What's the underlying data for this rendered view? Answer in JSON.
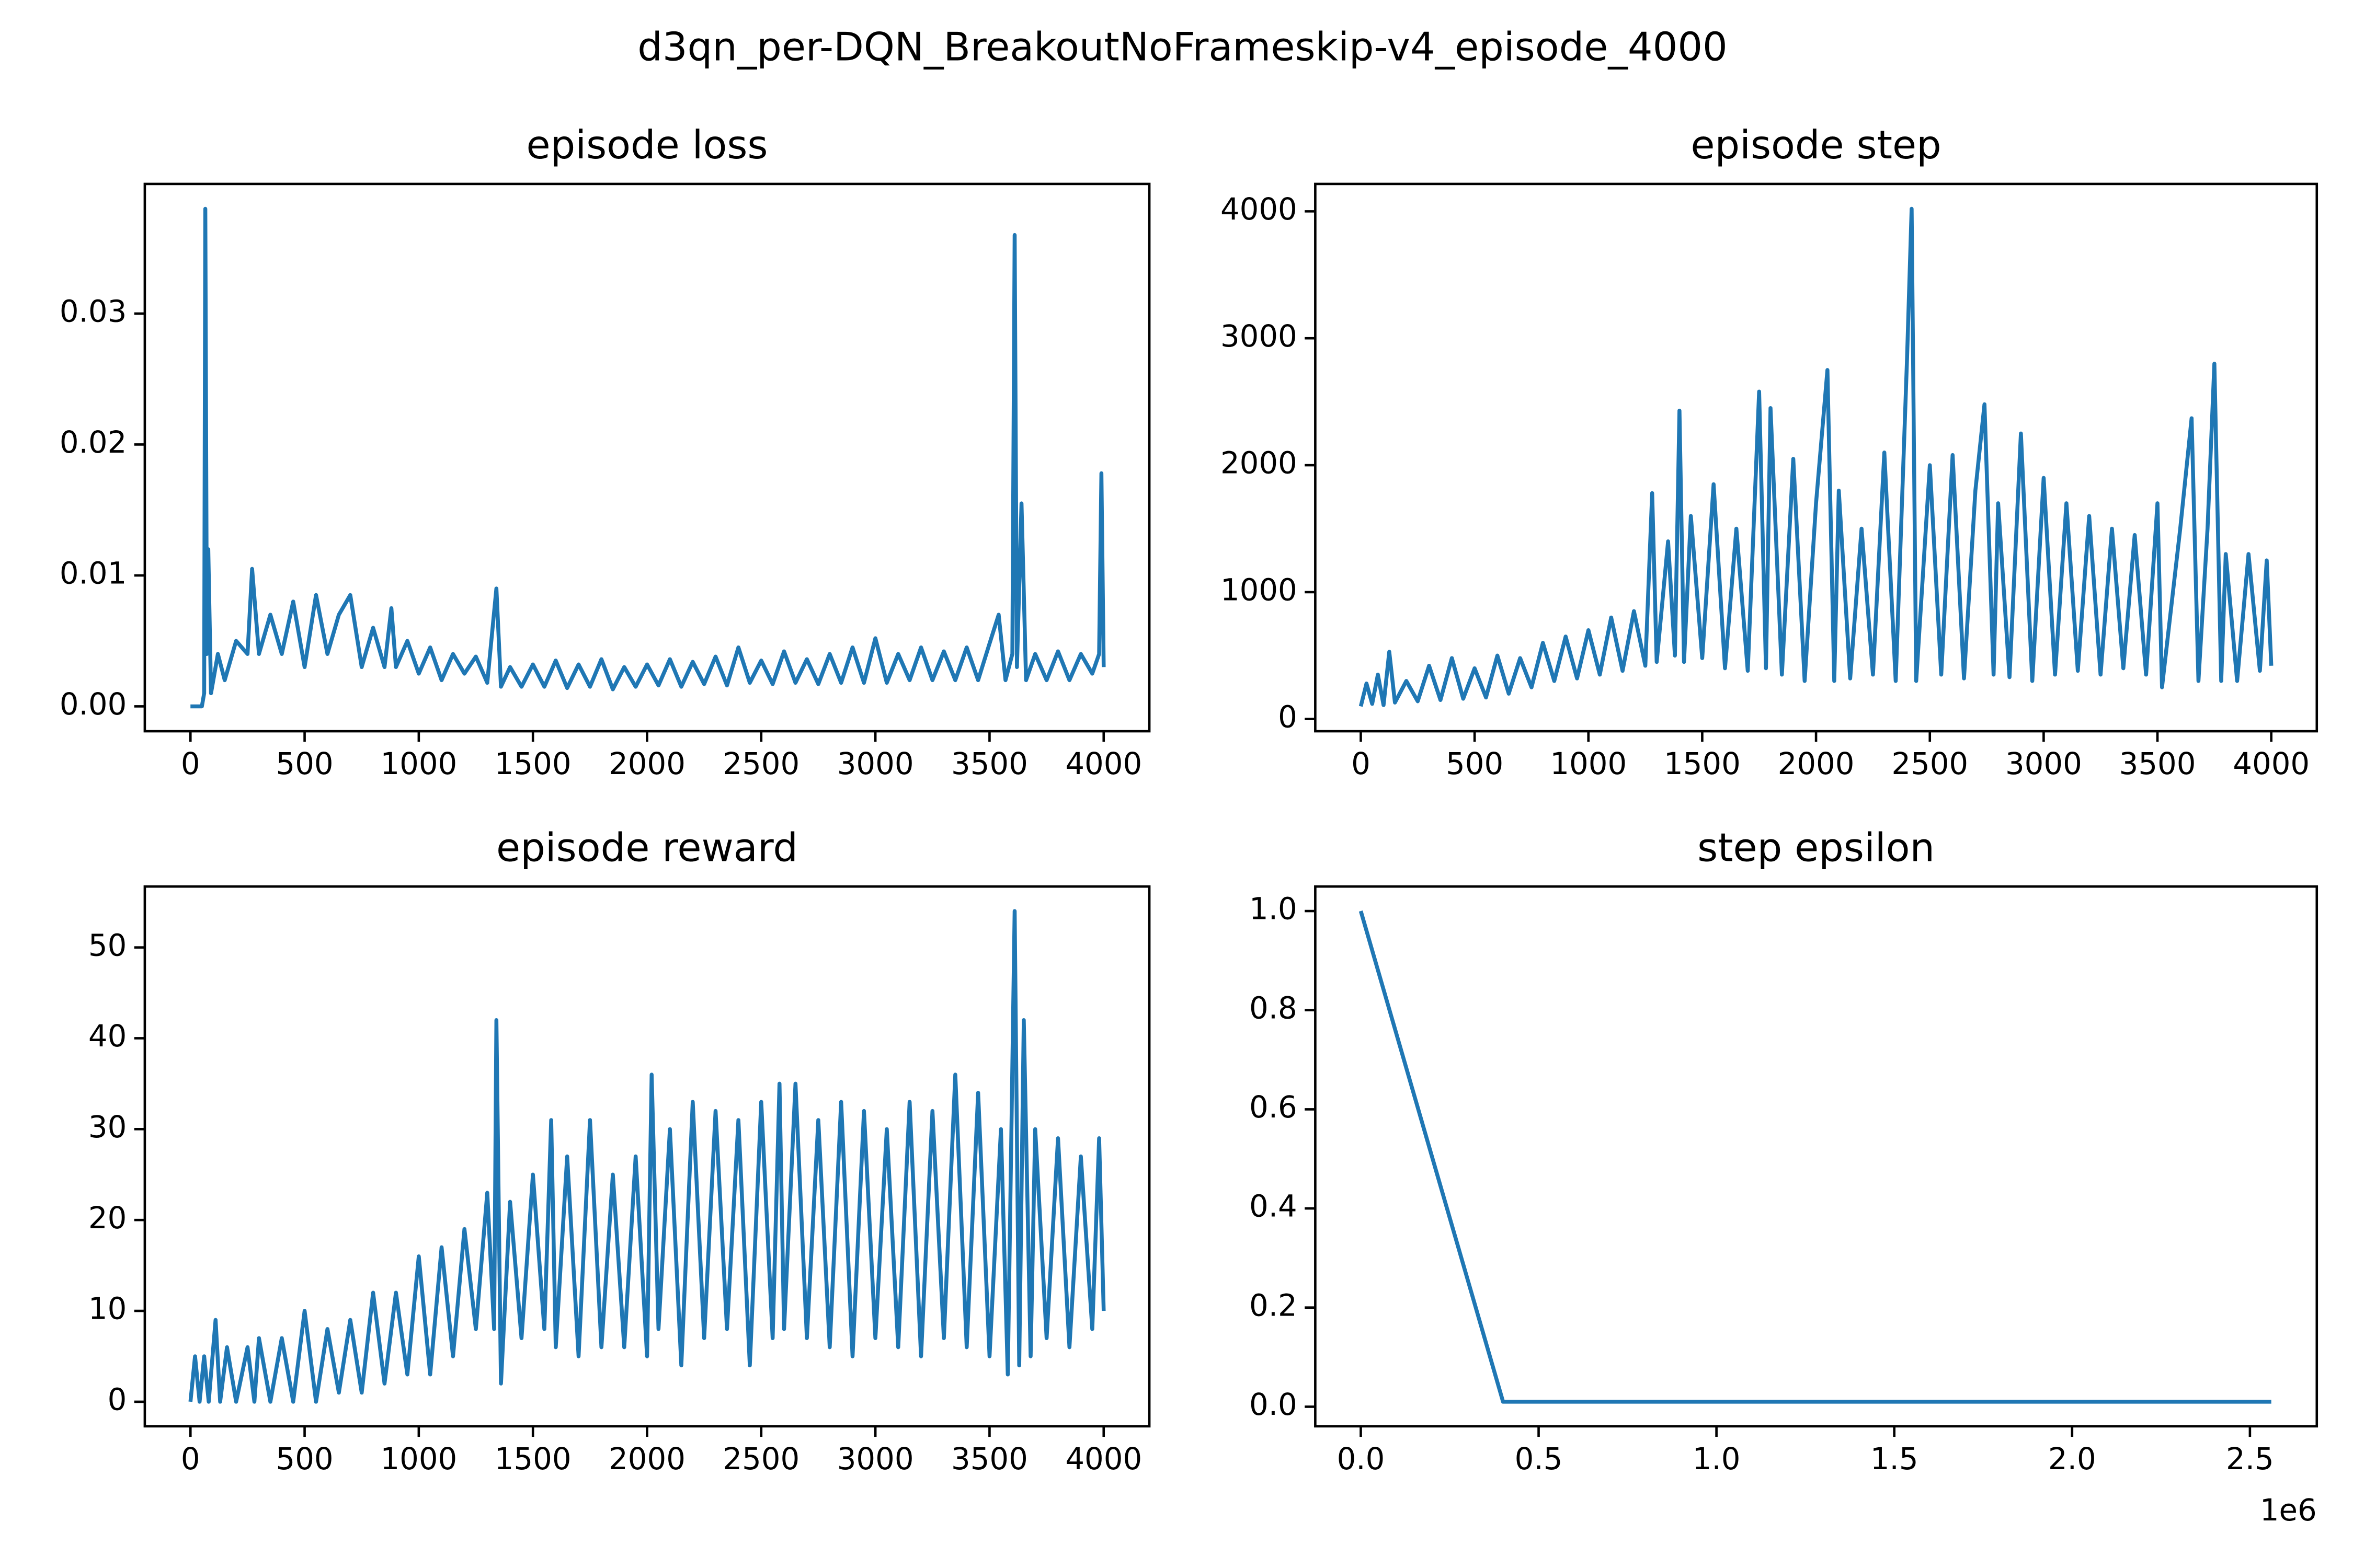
{
  "title": "d3qn_per-DQN_BreakoutNoFrameskip-v4_episode_4000",
  "chart_data": [
    {
      "type": "line",
      "title": "episode loss",
      "color": "#1f77b4",
      "xlim": [
        -200,
        4200
      ],
      "xticks": [
        0,
        500,
        1000,
        1500,
        2000,
        2500,
        3000,
        3500,
        4000
      ],
      "ylim": [
        -0.0019,
        0.0399
      ],
      "yticks": [
        {
          "value": 0,
          "label": "0.00"
        },
        0.01,
        0.02,
        0.03
      ],
      "x": [
        0,
        50,
        60,
        65,
        72,
        78,
        90,
        120,
        150,
        200,
        250,
        270,
        300,
        350,
        400,
        450,
        500,
        550,
        600,
        650,
        700,
        750,
        800,
        850,
        880,
        900,
        950,
        1000,
        1050,
        1100,
        1150,
        1200,
        1250,
        1300,
        1340,
        1360,
        1400,
        1450,
        1500,
        1550,
        1600,
        1650,
        1700,
        1750,
        1800,
        1850,
        1900,
        1950,
        2000,
        2050,
        2100,
        2150,
        2200,
        2250,
        2300,
        2350,
        2400,
        2450,
        2500,
        2550,
        2600,
        2650,
        2700,
        2750,
        2800,
        2850,
        2900,
        2950,
        3000,
        3050,
        3100,
        3150,
        3200,
        3250,
        3300,
        3350,
        3400,
        3450,
        3500,
        3540,
        3570,
        3600,
        3610,
        3620,
        3640,
        3660,
        3700,
        3750,
        3800,
        3850,
        3900,
        3950,
        3980,
        3990,
        4000
      ],
      "values": [
        0,
        0,
        0.001,
        0.038,
        0.004,
        0.012,
        0.001,
        0.004,
        0.002,
        0.005,
        0.004,
        0.0105,
        0.004,
        0.007,
        0.004,
        0.008,
        0.003,
        0.0085,
        0.004,
        0.007,
        0.0085,
        0.003,
        0.006,
        0.003,
        0.0075,
        0.003,
        0.005,
        0.0025,
        0.0045,
        0.002,
        0.004,
        0.0025,
        0.0038,
        0.0018,
        0.009,
        0.0015,
        0.003,
        0.0015,
        0.0032,
        0.0015,
        0.0035,
        0.0014,
        0.0032,
        0.0015,
        0.0036,
        0.0013,
        0.003,
        0.0015,
        0.0032,
        0.0016,
        0.0036,
        0.0015,
        0.0034,
        0.0017,
        0.0038,
        0.0016,
        0.0045,
        0.0018,
        0.0035,
        0.0017,
        0.0042,
        0.0018,
        0.0036,
        0.0017,
        0.004,
        0.0018,
        0.0045,
        0.0018,
        0.0052,
        0.0018,
        0.004,
        0.002,
        0.0045,
        0.002,
        0.0042,
        0.002,
        0.0045,
        0.002,
        0.0048,
        0.007,
        0.002,
        0.004,
        0.036,
        0.003,
        0.0155,
        0.002,
        0.004,
        0.002,
        0.0042,
        0.002,
        0.004,
        0.0025,
        0.004,
        0.0178,
        0.003
      ]
    },
    {
      "type": "line",
      "title": "episode step",
      "color": "#1f77b4",
      "xlim": [
        -200,
        4200
      ],
      "xticks": [
        0,
        500,
        1000,
        1500,
        2000,
        2500,
        3000,
        3500,
        4000
      ],
      "ylim": [
        -96,
        4216
      ],
      "yticks": [
        0,
        1000,
        2000,
        3000,
        4000
      ],
      "x": [
        0,
        25,
        50,
        75,
        100,
        125,
        150,
        200,
        250,
        300,
        350,
        400,
        450,
        500,
        550,
        600,
        650,
        700,
        750,
        800,
        850,
        900,
        950,
        1000,
        1050,
        1100,
        1150,
        1200,
        1250,
        1280,
        1300,
        1350,
        1380,
        1400,
        1420,
        1450,
        1500,
        1550,
        1600,
        1650,
        1700,
        1750,
        1780,
        1800,
        1850,
        1900,
        1950,
        2000,
        2050,
        2080,
        2100,
        2150,
        2200,
        2250,
        2300,
        2350,
        2400,
        2420,
        2440,
        2500,
        2550,
        2600,
        2650,
        2700,
        2740,
        2780,
        2800,
        2850,
        2900,
        2950,
        3000,
        3050,
        3100,
        3150,
        3200,
        3250,
        3300,
        3350,
        3400,
        3450,
        3500,
        3520,
        3600,
        3650,
        3680,
        3720,
        3750,
        3780,
        3800,
        3850,
        3900,
        3950,
        3980,
        4000
      ],
      "values": [
        100,
        280,
        120,
        350,
        110,
        530,
        130,
        300,
        140,
        420,
        150,
        480,
        160,
        400,
        170,
        500,
        200,
        480,
        250,
        600,
        300,
        650,
        320,
        700,
        350,
        800,
        380,
        850,
        420,
        1780,
        450,
        1400,
        500,
        2430,
        450,
        1600,
        480,
        1850,
        400,
        1500,
        380,
        2580,
        400,
        2450,
        350,
        2050,
        300,
        1700,
        2750,
        300,
        1800,
        320,
        1500,
        350,
        2100,
        300,
        2850,
        4020,
        300,
        2000,
        350,
        2080,
        320,
        1800,
        2480,
        350,
        1700,
        330,
        2250,
        300,
        1900,
        350,
        1700,
        380,
        1600,
        350,
        1500,
        400,
        1450,
        350,
        1700,
        250,
        1500,
        2370,
        300,
        1500,
        2800,
        300,
        1300,
        300,
        1300,
        380,
        1250,
        420
      ]
    },
    {
      "type": "line",
      "title": "episode reward",
      "color": "#1f77b4",
      "xlim": [
        -200,
        4200
      ],
      "xticks": [
        0,
        500,
        1000,
        1500,
        2000,
        2500,
        3000,
        3500,
        4000
      ],
      "ylim": [
        -2.7,
        56.7
      ],
      "yticks": [
        0,
        10,
        20,
        30,
        40,
        50
      ],
      "x": [
        0,
        20,
        40,
        60,
        80,
        110,
        130,
        160,
        200,
        250,
        280,
        300,
        350,
        400,
        450,
        500,
        550,
        600,
        650,
        700,
        750,
        800,
        850,
        900,
        950,
        1000,
        1050,
        1100,
        1150,
        1200,
        1250,
        1300,
        1330,
        1340,
        1360,
        1400,
        1450,
        1500,
        1550,
        1580,
        1600,
        1650,
        1700,
        1750,
        1800,
        1850,
        1900,
        1950,
        2000,
        2020,
        2050,
        2100,
        2150,
        2200,
        2250,
        2300,
        2350,
        2400,
        2450,
        2500,
        2550,
        2580,
        2600,
        2650,
        2700,
        2750,
        2800,
        2850,
        2900,
        2950,
        3000,
        3050,
        3100,
        3150,
        3200,
        3250,
        3300,
        3350,
        3400,
        3450,
        3500,
        3550,
        3580,
        3610,
        3630,
        3650,
        3680,
        3700,
        3750,
        3800,
        3850,
        3900,
        3950,
        3980,
        4000
      ],
      "values": [
        0,
        5,
        0,
        5,
        0,
        9,
        0,
        6,
        0,
        6,
        0,
        7,
        0,
        7,
        0,
        10,
        0,
        8,
        1,
        9,
        1,
        12,
        2,
        12,
        3,
        16,
        3,
        17,
        5,
        19,
        8,
        23,
        8,
        42,
        2,
        22,
        7,
        25,
        8,
        31,
        6,
        27,
        5,
        31,
        6,
        25,
        6,
        27,
        5,
        36,
        8,
        30,
        4,
        33,
        7,
        32,
        8,
        31,
        4,
        33,
        7,
        35,
        8,
        35,
        7,
        31,
        6,
        33,
        5,
        32,
        7,
        30,
        6,
        33,
        5,
        32,
        7,
        36,
        6,
        34,
        5,
        30,
        3,
        54,
        4,
        42,
        5,
        30,
        7,
        29,
        6,
        27,
        8,
        29,
        10
      ]
    },
    {
      "type": "line",
      "title": "step epsilon",
      "color": "#1f77b4",
      "xlim": [
        -128000,
        2688000
      ],
      "xticks": [
        {
          "value": 0,
          "label": "0.0"
        },
        {
          "value": 500000,
          "label": "0.5"
        },
        {
          "value": 1000000,
          "label": "1.0"
        },
        {
          "value": 1500000,
          "label": "1.5"
        },
        {
          "value": 2000000,
          "label": "2.0"
        },
        {
          "value": 2500000,
          "label": "2.5"
        }
      ],
      "x_offset_label": "1e6",
      "ylim": [
        -0.0395,
        1.0495
      ],
      "yticks": [
        {
          "value": 0,
          "label": "0.0"
        },
        0.2,
        0.4,
        0.6,
        0.8,
        {
          "value": 1,
          "label": "1.0"
        }
      ],
      "x": [
        0,
        400000,
        2560000
      ],
      "values": [
        1.0,
        0.01,
        0.01
      ]
    }
  ]
}
